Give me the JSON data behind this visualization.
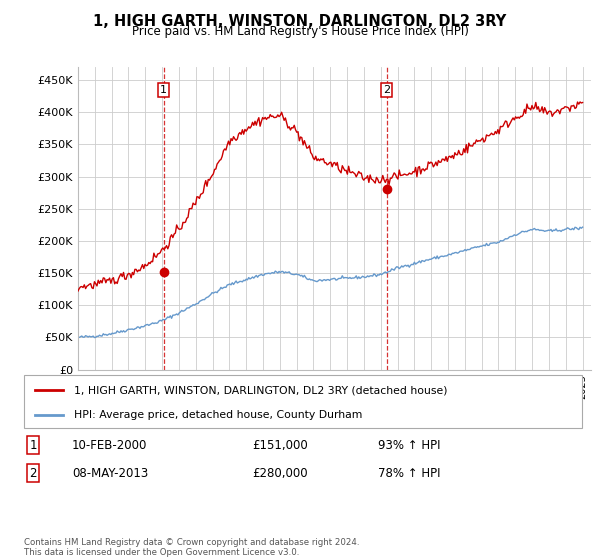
{
  "title": "1, HIGH GARTH, WINSTON, DARLINGTON, DL2 3RY",
  "subtitle": "Price paid vs. HM Land Registry's House Price Index (HPI)",
  "legend_line1": "1, HIGH GARTH, WINSTON, DARLINGTON, DL2 3RY (detached house)",
  "legend_line2": "HPI: Average price, detached house, County Durham",
  "annotation1_label": "1",
  "annotation1_date": "10-FEB-2000",
  "annotation1_price": "£151,000",
  "annotation1_hpi": "93% ↑ HPI",
  "annotation2_label": "2",
  "annotation2_date": "08-MAY-2013",
  "annotation2_price": "£280,000",
  "annotation2_hpi": "78% ↑ HPI",
  "footer": "Contains HM Land Registry data © Crown copyright and database right 2024.\nThis data is licensed under the Open Government Licence v3.0.",
  "red_color": "#cc0000",
  "blue_color": "#6699cc",
  "annotation_line_color": "#cc0000",
  "grid_color": "#cccccc",
  "background_color": "#ffffff",
  "ylim": [
    0,
    470000
  ],
  "yticks": [
    0,
    50000,
    100000,
    150000,
    200000,
    250000,
    300000,
    350000,
    400000,
    450000
  ],
  "ytick_labels": [
    "£0",
    "£50K",
    "£100K",
    "£150K",
    "£200K",
    "£250K",
    "£300K",
    "£350K",
    "£400K",
    "£450K"
  ],
  "purchase1_x": 2000.1,
  "purchase1_y": 151000,
  "purchase2_x": 2013.36,
  "purchase2_y": 280000,
  "xmin": 1995,
  "xmax": 2025.5,
  "hpi_key_x": [
    1995,
    1996,
    1997,
    1998,
    1999,
    2000,
    2001,
    2002,
    2003,
    2004,
    2005,
    2006,
    2007,
    2008,
    2009,
    2010,
    2011,
    2012,
    2013,
    2014,
    2015,
    2016,
    2017,
    2018,
    2019,
    2020,
    2021,
    2022,
    2023,
    2024,
    2025
  ],
  "hpi_key_y": [
    50000,
    52000,
    56000,
    62000,
    68000,
    76000,
    88000,
    102000,
    118000,
    132000,
    140000,
    148000,
    152000,
    148000,
    138000,
    140000,
    142000,
    144000,
    148000,
    158000,
    165000,
    172000,
    178000,
    185000,
    192000,
    198000,
    210000,
    218000,
    215000,
    218000,
    220000
  ],
  "prop_key_x": [
    1995,
    1996,
    1997,
    1998,
    1999,
    2000,
    2001,
    2002,
    2003,
    2004,
    2005,
    2006,
    2007,
    2008,
    2009,
    2010,
    2011,
    2012,
    2013,
    2014,
    2015,
    2016,
    2017,
    2018,
    2019,
    2020,
    2021,
    2022,
    2023,
    2024,
    2025
  ],
  "prop_key_y": [
    128000,
    132000,
    138000,
    148000,
    162000,
    185000,
    218000,
    260000,
    305000,
    355000,
    375000,
    390000,
    395000,
    370000,
    330000,
    320000,
    308000,
    298000,
    295000,
    300000,
    308000,
    318000,
    328000,
    342000,
    358000,
    372000,
    392000,
    408000,
    398000,
    405000,
    415000
  ]
}
